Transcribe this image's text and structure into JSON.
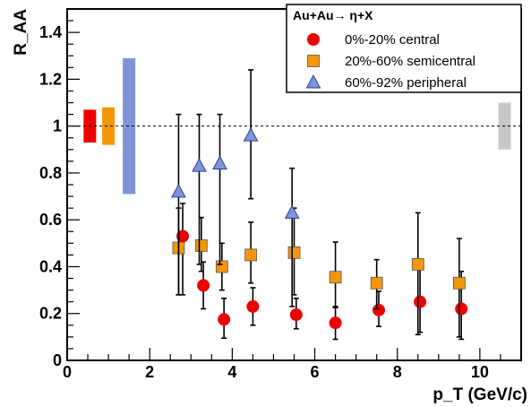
{
  "chart_data": {
    "type": "scatter",
    "title": "",
    "xlabel": "p_T (GeV/c)",
    "ylabel": "R_AA",
    "xlim": [
      0,
      11
    ],
    "ylim": [
      0,
      1.5
    ],
    "x_ticks": [
      0,
      2,
      4,
      6,
      8,
      10
    ],
    "x_tick_labels": [
      "0",
      "2",
      "4",
      "6",
      "8",
      "10"
    ],
    "y_ticks": [
      0,
      0.2,
      0.4,
      0.6,
      0.8,
      1,
      1.2,
      1.4
    ],
    "y_tick_labels": [
      "0",
      "0.2",
      "0.4",
      "0.6",
      "0.8",
      "1",
      "1.2",
      "1.4"
    ],
    "reference_line": {
      "y": 1,
      "style": "dashed"
    },
    "grid": false,
    "legend": {
      "title": "Au+Au→ η+X",
      "placement": "top-right",
      "entries": [
        "0%-20% central",
        "20%-60% semicentral",
        "60%-92% peripheral"
      ]
    },
    "series": [
      {
        "name": "0%-20% central",
        "marker": "circle",
        "color": "#ee0000",
        "x": [
          2.8,
          3.3,
          3.8,
          4.5,
          5.55,
          6.5,
          7.55,
          8.55,
          9.55
        ],
        "y": [
          0.53,
          0.32,
          0.175,
          0.23,
          0.195,
          0.16,
          0.215,
          0.25,
          0.22
        ],
        "yerr_low": [
          0.25,
          0.1,
          0.08,
          0.08,
          0.06,
          0.07,
          0.07,
          0.13,
          0.13
        ],
        "yerr_high": [
          0.14,
          0.1,
          0.09,
          0.08,
          0.07,
          0.07,
          0.08,
          0.14,
          0.16
        ]
      },
      {
        "name": "20%-60% semicentral",
        "marker": "square",
        "color": "#f5960a",
        "x": [
          2.7,
          3.25,
          3.75,
          4.45,
          5.5,
          6.5,
          7.5,
          8.5,
          9.5
        ],
        "y": [
          0.48,
          0.49,
          0.4,
          0.45,
          0.46,
          0.355,
          0.33,
          0.41,
          0.33
        ],
        "yerr_low": [
          0.2,
          0.11,
          0.1,
          0.12,
          0.18,
          0.13,
          0.11,
          0.3,
          0.23
        ],
        "yerr_high": [
          0.17,
          0.12,
          0.1,
          0.14,
          0.19,
          0.15,
          0.1,
          0.22,
          0.19
        ]
      },
      {
        "name": "60%-92% peripheral",
        "marker": "triangle",
        "color": "#7f95d8",
        "x": [
          2.7,
          3.2,
          3.7,
          4.45,
          5.45
        ],
        "y": [
          0.72,
          0.83,
          0.84,
          0.96,
          0.63
        ],
        "yerr_low": [
          0.44,
          0.42,
          0.43,
          0.27,
          0.4
        ],
        "yerr_high": [
          0.33,
          0.22,
          0.21,
          0.28,
          0.19
        ]
      }
    ],
    "normalization_boxes": [
      {
        "x": 0.55,
        "y_low": 0.93,
        "y_high": 1.07,
        "color": "#ee0000"
      },
      {
        "x": 1.0,
        "y_low": 0.92,
        "y_high": 1.08,
        "color": "#f5960a"
      },
      {
        "x": 1.5,
        "y_low": 0.71,
        "y_high": 1.29,
        "color": "#7f95d8"
      },
      {
        "x": 10.6,
        "y_low": 0.9,
        "y_high": 1.1,
        "color": "#c8c8c8"
      }
    ]
  }
}
